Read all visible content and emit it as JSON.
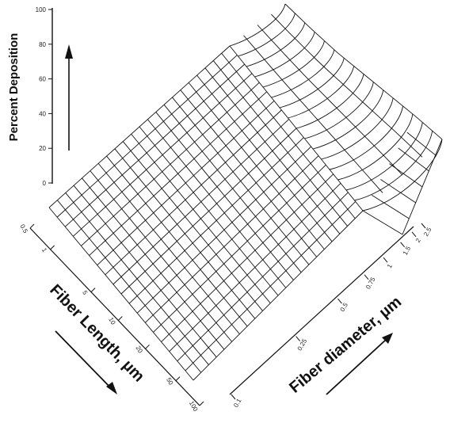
{
  "chart_data": {
    "type": "surface3d",
    "z_axis": {
      "label": "Percent Deposition",
      "ticks": [
        0,
        20,
        40,
        60,
        80,
        100
      ],
      "range": [
        0,
        100
      ]
    },
    "x_axis": {
      "label": "Fiber Length, µm",
      "tick_labels": [
        "0.5",
        "1",
        "5",
        "10",
        "20",
        "50",
        "100"
      ]
    },
    "y_axis": {
      "label": "Fiber diameter, µm",
      "tick_labels": [
        "0.1",
        "0.25",
        "0.5",
        "0.75",
        "1",
        "1.5",
        "2",
        "2.5"
      ]
    },
    "surface": {
      "description_values": {
        "diameters_um": [
          0.1,
          0.25,
          0.5,
          0.75,
          1,
          1.5,
          2,
          2.5
        ],
        "deposition_percent_at_max_diameter": [
          60,
          62,
          65,
          70,
          75,
          80,
          84
        ],
        "deposition_percent_at_min_diameter": [
          0,
          0,
          0,
          0,
          0,
          0,
          0
        ]
      }
    },
    "grid": true,
    "legend": "none"
  }
}
